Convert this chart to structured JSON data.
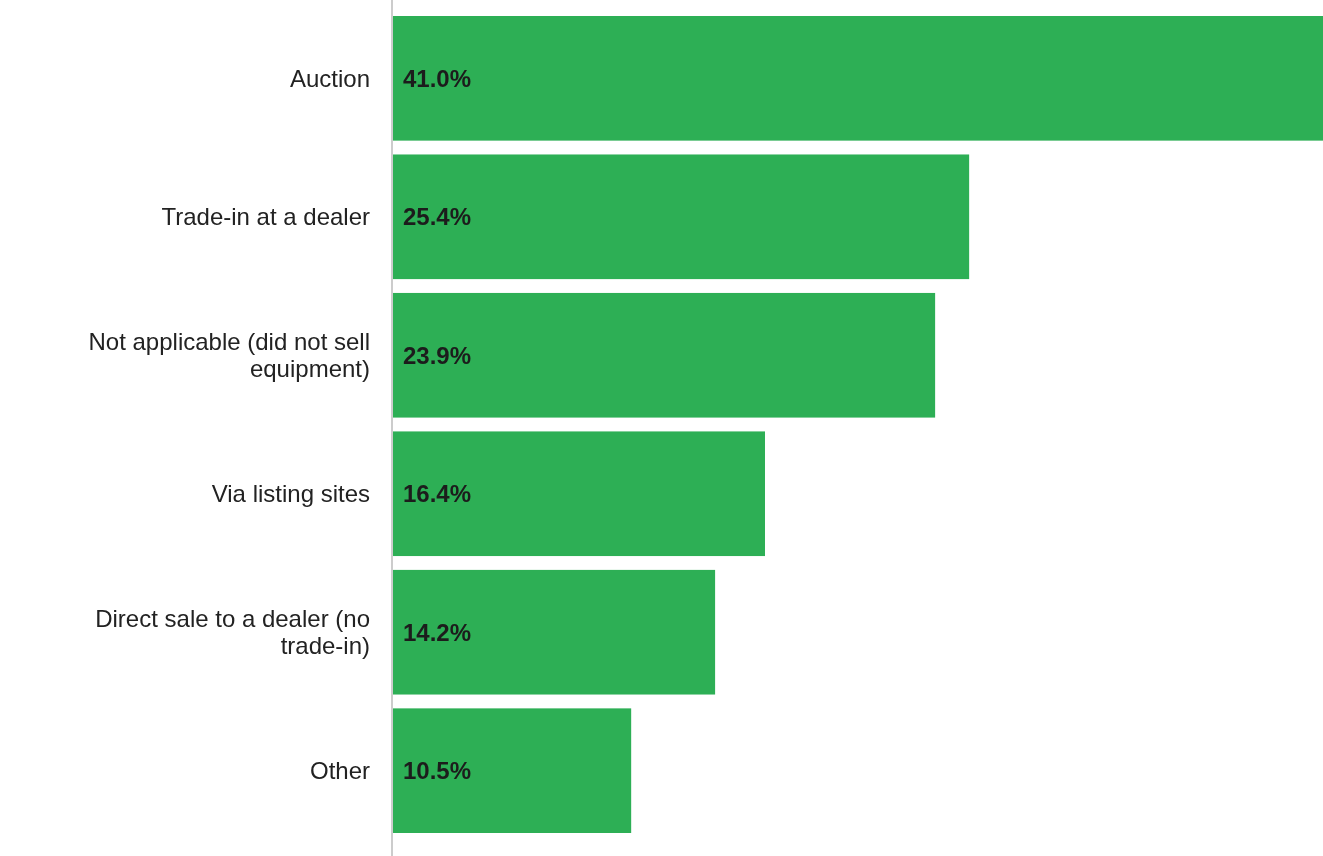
{
  "chart_data": {
    "type": "bar",
    "orientation": "horizontal",
    "categories": [
      "Auction",
      "Trade-in at a dealer",
      "Not applicable (did not sell equipment)",
      "Via listing sites",
      "Direct sale to a dealer (no trade-in)",
      "Other"
    ],
    "values": [
      41.0,
      25.4,
      23.9,
      16.4,
      14.2,
      10.5
    ],
    "value_labels": [
      "41.0%",
      "25.4%",
      "23.9%",
      "16.4%",
      "14.2%",
      "10.5%"
    ],
    "color": "#2daf55",
    "xlim": [
      0,
      41
    ],
    "tick_labels": "y"
  }
}
